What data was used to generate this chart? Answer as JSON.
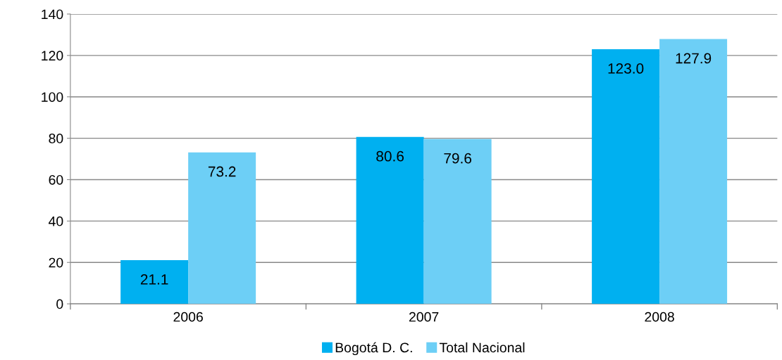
{
  "chart_data": {
    "type": "bar",
    "categories": [
      "2006",
      "2007",
      "2008"
    ],
    "series": [
      {
        "name": "Bogotá D. C.",
        "color": "#00b0f0",
        "values": [
          21.1,
          80.6,
          123.0
        ],
        "value_labels": [
          "21.1",
          "80.6",
          "123.0"
        ]
      },
      {
        "name": "Total Nacional",
        "color": "#6dcff6",
        "values": [
          73.2,
          79.6,
          127.9
        ],
        "value_labels": [
          "73.2",
          "79.6",
          "127.9"
        ]
      }
    ],
    "ylim": [
      0,
      140
    ],
    "yticks": [
      0,
      20,
      40,
      60,
      80,
      100,
      120,
      140
    ],
    "grid": "y",
    "legend": "bottom"
  }
}
